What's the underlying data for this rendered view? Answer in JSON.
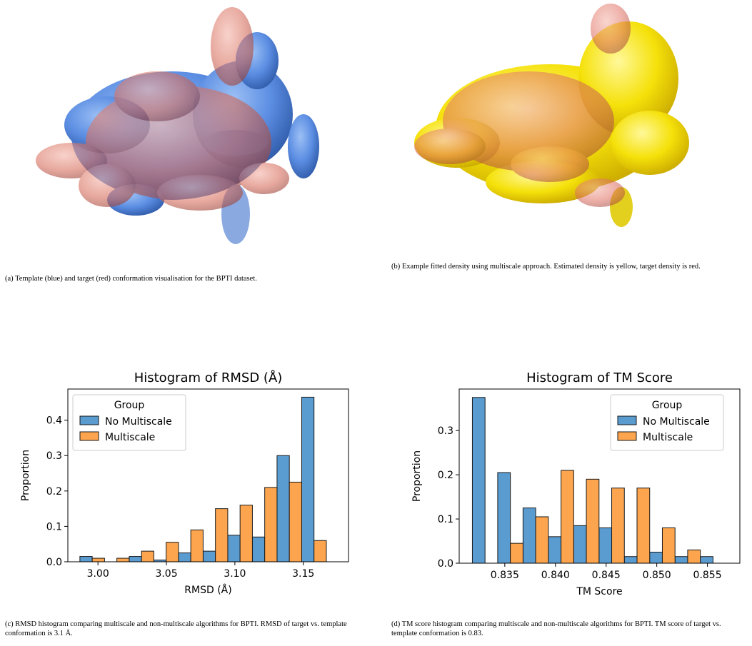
{
  "figure_a": {
    "caption": "(a) Template (blue) and target (red) conformation visualisation for the BPTI dataset.",
    "colors": {
      "template": "#5b8de2",
      "target": "#e07062"
    }
  },
  "figure_b": {
    "caption": "(b) Example fitted density using multiscale approach. Estimated density is yellow, target density is red.",
    "colors": {
      "estimated": "#f5e10a",
      "target": "#e07062"
    }
  },
  "figure_c": {
    "caption": "(c) RMSD histogram comparing multiscale and non-multiscale algorithms for BPTI. RMSD of target vs. template conformation is 3.1 Å."
  },
  "figure_d": {
    "caption": "(d) TM score histogram comparing multiscale and non-multiscale algorithms for BPTI. TM score of target vs. template conformation is 0.83."
  },
  "chart_data": [
    {
      "type": "bar",
      "title": "Histogram of RMSD (Å)",
      "xlabel": "RMSD (Å)",
      "ylabel": "Proportion",
      "xlim": [
        2.978,
        3.183
      ],
      "ylim": [
        0,
        0.488
      ],
      "xticks": [
        "3.00",
        "3.05",
        "3.10",
        "3.15"
      ],
      "xtick_values": [
        3.0,
        3.05,
        3.1,
        3.15
      ],
      "yticks": [
        "0.0",
        "0.1",
        "0.2",
        "0.3",
        "0.4"
      ],
      "ytick_values": [
        0.0,
        0.1,
        0.2,
        0.3,
        0.4
      ],
      "legend_title": "Group",
      "legend_position": "upper-left",
      "bin_left_edges": [
        2.9868,
        3.0048,
        3.0228,
        3.0408,
        3.0588,
        3.0768,
        3.0948,
        3.1128,
        3.1308,
        3.1488,
        3.1668
      ],
      "bin_width": 0.018,
      "series": [
        {
          "name": "No Multiscale",
          "color": "#5a9bd0",
          "values": [
            0.015,
            0.0,
            0.015,
            0.005,
            0.025,
            0.03,
            0.075,
            0.07,
            0.3,
            0.465,
            0.0
          ]
        },
        {
          "name": "Multiscale",
          "color": "#fca54e",
          "values": [
            0.01,
            0.01,
            0.03,
            0.055,
            0.09,
            0.15,
            0.16,
            0.21,
            0.225,
            0.06,
            0.0
          ]
        }
      ]
    },
    {
      "type": "bar",
      "title": "Histogram of TM Score",
      "xlabel": "TM Score",
      "ylabel": "Proportion",
      "xlim": [
        0.8305,
        0.8582
      ],
      "ylim": [
        0,
        0.394
      ],
      "xticks": [
        "0.835",
        "0.840",
        "0.845",
        "0.850",
        "0.855"
      ],
      "xtick_values": [
        0.835,
        0.84,
        0.845,
        0.85,
        0.855
      ],
      "yticks": [
        "0.0",
        "0.1",
        "0.2",
        "0.3"
      ],
      "ytick_values": [
        0.0,
        0.1,
        0.2,
        0.3
      ],
      "legend_title": "Group",
      "legend_position": "upper-right",
      "bin_left_edges": [
        0.8318,
        0.8343,
        0.8368,
        0.8393,
        0.8418,
        0.8443,
        0.8468,
        0.8493,
        0.8518,
        0.8543
      ],
      "bin_width": 0.0025,
      "series": [
        {
          "name": "No Multiscale",
          "color": "#5a9bd0",
          "values": [
            0.375,
            0.205,
            0.125,
            0.06,
            0.085,
            0.08,
            0.015,
            0.025,
            0.015,
            0.015
          ]
        },
        {
          "name": "Multiscale",
          "color": "#fca54e",
          "values": [
            0.0,
            0.045,
            0.105,
            0.21,
            0.19,
            0.17,
            0.17,
            0.08,
            0.03,
            0.0
          ]
        }
      ]
    }
  ]
}
